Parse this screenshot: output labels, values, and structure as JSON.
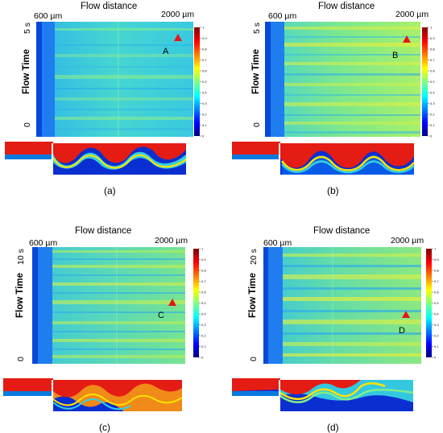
{
  "figure": {
    "panels": [
      {
        "id": "a",
        "title": "Flow distance",
        "start_label": "600 µm",
        "end_label": "2000 µm",
        "time_label": "5 s",
        "y_axis_label": "Flow Time",
        "zero_label": "0",
        "point_label": "A",
        "caption": "(a)"
      },
      {
        "id": "b",
        "title": "Flow distance",
        "start_label": "600 µm",
        "end_label": "2000 µm",
        "time_label": "5 s",
        "y_axis_label": "Flow Time",
        "zero_label": "0",
        "point_label": "B",
        "caption": "(b)"
      },
      {
        "id": "c",
        "title": "Flow distance",
        "start_label": "600 µm",
        "end_label": "2000 µm",
        "time_label": "10 s",
        "y_axis_label": "Flow Time",
        "zero_label": "0",
        "point_label": "C",
        "caption": "(c)"
      },
      {
        "id": "d",
        "title": "Flow distance",
        "start_label": "600 µm",
        "end_label": "2000 µm",
        "time_label": "20 s",
        "y_axis_label": "Flow Time",
        "zero_label": "0",
        "point_label": "D",
        "caption": "(d)"
      }
    ],
    "colorbar_ticks": [
      "1",
      "0.9",
      "0.8",
      "0.7",
      "0.6",
      "0.5",
      "0.4",
      "0.3",
      "0.2",
      "0.1",
      "0"
    ],
    "colormap": [
      "#00007f",
      "#0000ff",
      "#007fff",
      "#00ffff",
      "#7fff7f",
      "#ffff00",
      "#ff7f00",
      "#ff0000",
      "#7f0000"
    ],
    "marker_color": "#e8141c"
  }
}
